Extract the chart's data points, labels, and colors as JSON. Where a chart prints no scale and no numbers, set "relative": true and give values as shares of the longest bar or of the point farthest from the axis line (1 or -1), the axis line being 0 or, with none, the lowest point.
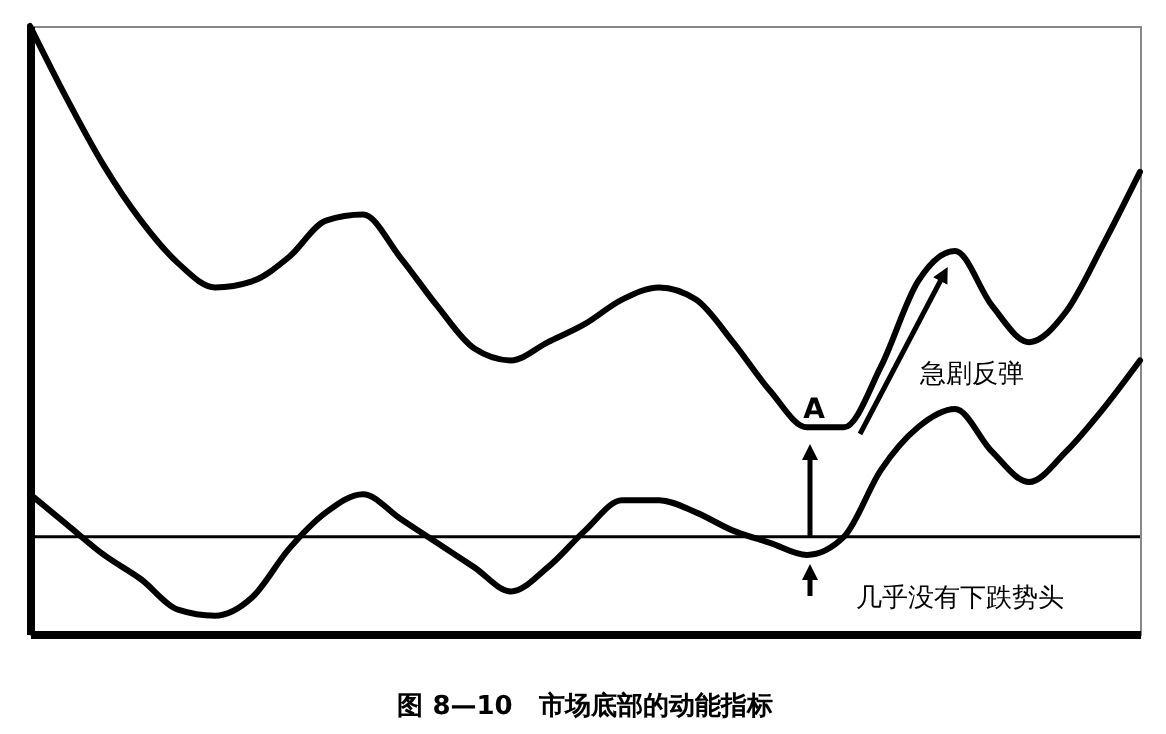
{
  "chart_data": {
    "type": "line",
    "title": "图 8—10　市场底部的动能指标",
    "relative": true,
    "categories": [
      null,
      null,
      null,
      null,
      null,
      null,
      null,
      null,
      null,
      null,
      null,
      null,
      null,
      null,
      null,
      null,
      null,
      null,
      null,
      null,
      null,
      null,
      null,
      null,
      null,
      null,
      null,
      null,
      null,
      null,
      null
    ],
    "series": [
      {
        "color": "#000000",
        "values": [
          1.0,
          0.88,
          0.77,
          0.68,
          0.61,
          0.57,
          0.58,
          0.62,
          0.68,
          0.69,
          0.62,
          0.54,
          0.47,
          0.45,
          0.48,
          0.51,
          0.55,
          0.57,
          0.55,
          0.48,
          0.4,
          0.34,
          0.34,
          0.44,
          0.58,
          0.63,
          0.54,
          0.48,
          0.53,
          0.64,
          0.76
        ]
      },
      {
        "color": "#000000",
        "values": [
          0.23,
          0.18,
          0.13,
          0.09,
          0.04,
          0.03,
          0.06,
          0.14,
          0.2,
          0.23,
          0.19,
          0.15,
          0.11,
          0.07,
          0.11,
          0.17,
          0.22,
          0.22,
          0.2,
          0.17,
          0.15,
          0.13,
          0.16,
          0.27,
          0.34,
          0.37,
          0.3,
          0.25,
          0.3,
          0.37,
          0.45
        ]
      }
    ],
    "ref_lines": [
      {
        "axis": "y",
        "value": 0.16,
        "color": "#000000"
      }
    ],
    "annotations": [
      "A",
      "急剧反弹",
      "几乎没有下跌势头"
    ],
    "grid": false,
    "marker": "none",
    "line_style": "solid"
  }
}
